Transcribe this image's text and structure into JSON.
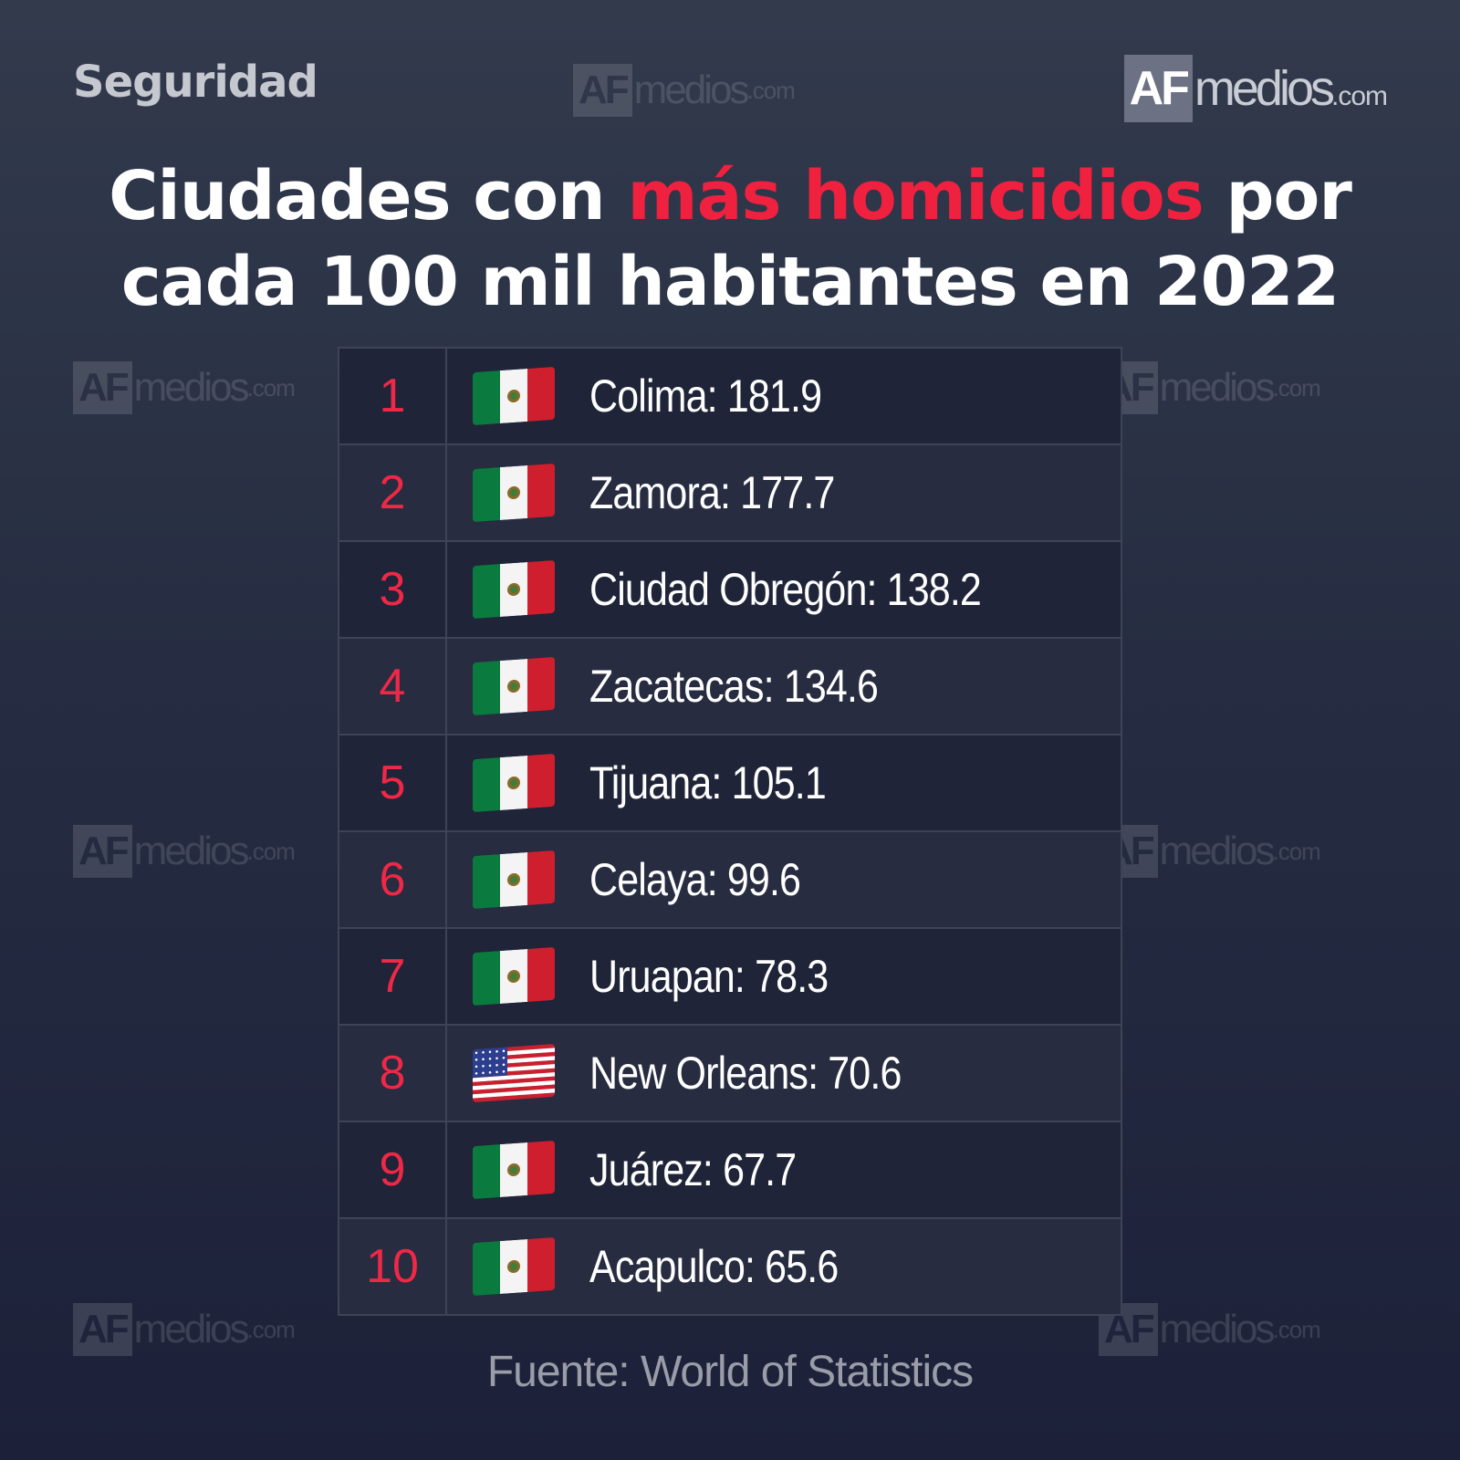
{
  "header": {
    "section": "Seguridad",
    "brand": {
      "af": "AF",
      "medios": "medios",
      "com": ".com"
    }
  },
  "title": {
    "part1": "Ciudades con ",
    "highlight": "más homicidios",
    "part2": " por",
    "line2": "cada 100 mil habitantes en 2022"
  },
  "colors": {
    "accent": "#f0203f",
    "rank": "#ee2846"
  },
  "chart_data": {
    "type": "table",
    "columns": [
      "rank",
      "flag",
      "city",
      "value"
    ],
    "rows": [
      {
        "rank": "1",
        "flag": "mexico-flag-icon",
        "label": "Colima: 181.9",
        "city": "Colima",
        "value": 181.9
      },
      {
        "rank": "2",
        "flag": "mexico-flag-icon",
        "label": "Zamora: 177.7",
        "city": "Zamora",
        "value": 177.7
      },
      {
        "rank": "3",
        "flag": "mexico-flag-icon",
        "label": "Ciudad Obregón: 138.2",
        "city": "Ciudad Obregón",
        "value": 138.2
      },
      {
        "rank": "4",
        "flag": "mexico-flag-icon",
        "label": "Zacatecas: 134.6",
        "city": "Zacatecas",
        "value": 134.6
      },
      {
        "rank": "5",
        "flag": "mexico-flag-icon",
        "label": "Tijuana: 105.1",
        "city": "Tijuana",
        "value": 105.1
      },
      {
        "rank": "6",
        "flag": "mexico-flag-icon",
        "label": "Celaya: 99.6",
        "city": "Celaya",
        "value": 99.6
      },
      {
        "rank": "7",
        "flag": "mexico-flag-icon",
        "label": "Uruapan: 78.3",
        "city": "Uruapan",
        "value": 78.3
      },
      {
        "rank": "8",
        "flag": "usa-flag-icon",
        "label": "New Orleans: 70.6",
        "city": "New Orleans",
        "value": 70.6
      },
      {
        "rank": "9",
        "flag": "mexico-flag-icon",
        "label": "Juárez: 67.7",
        "city": "Juárez",
        "value": 67.7
      },
      {
        "rank": "10",
        "flag": "mexico-flag-icon",
        "label": "Acapulco: 65.6",
        "city": "Acapulco",
        "value": 65.6
      }
    ]
  },
  "footer": {
    "source": "Fuente: World of Statistics"
  }
}
